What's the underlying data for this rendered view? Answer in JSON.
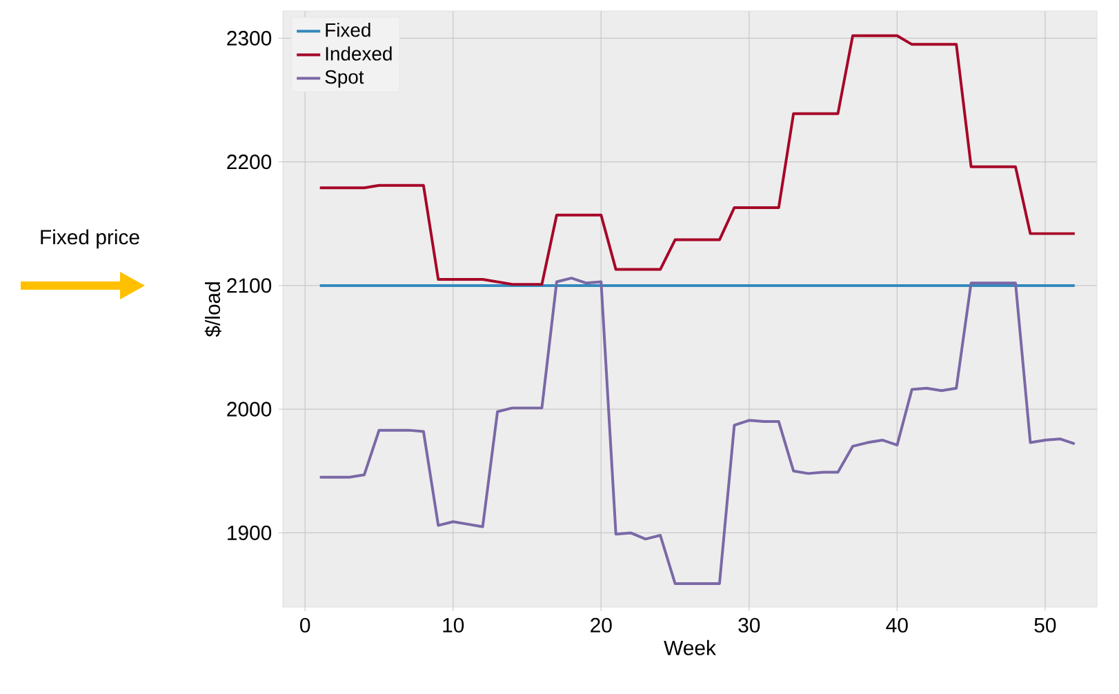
{
  "chart_data": {
    "type": "line",
    "xlabel": "Week",
    "ylabel": "$/load",
    "x": [
      1,
      2,
      3,
      4,
      5,
      6,
      7,
      8,
      9,
      10,
      11,
      12,
      13,
      14,
      15,
      16,
      17,
      18,
      19,
      20,
      21,
      22,
      23,
      24,
      25,
      26,
      27,
      28,
      29,
      30,
      31,
      32,
      33,
      34,
      35,
      36,
      37,
      38,
      39,
      40,
      41,
      42,
      43,
      44,
      45,
      46,
      47,
      48,
      49,
      50,
      51,
      52
    ],
    "series": [
      {
        "name": "Fixed",
        "color": "#348abd",
        "values": [
          2100,
          2100,
          2100,
          2100,
          2100,
          2100,
          2100,
          2100,
          2100,
          2100,
          2100,
          2100,
          2100,
          2100,
          2100,
          2100,
          2100,
          2100,
          2100,
          2100,
          2100,
          2100,
          2100,
          2100,
          2100,
          2100,
          2100,
          2100,
          2100,
          2100,
          2100,
          2100,
          2100,
          2100,
          2100,
          2100,
          2100,
          2100,
          2100,
          2100,
          2100,
          2100,
          2100,
          2100,
          2100,
          2100,
          2100,
          2100,
          2100,
          2100,
          2100,
          2100
        ]
      },
      {
        "name": "Indexed",
        "color": "#a60628",
        "values": [
          2179,
          2179,
          2179,
          2179,
          2181,
          2181,
          2181,
          2181,
          2105,
          2105,
          2105,
          2105,
          2103,
          2101,
          2101,
          2101,
          2157,
          2157,
          2157,
          2157,
          2113,
          2113,
          2113,
          2113,
          2137,
          2137,
          2137,
          2137,
          2163,
          2163,
          2163,
          2163,
          2239,
          2239,
          2239,
          2239,
          2302,
          2302,
          2302,
          2302,
          2295,
          2295,
          2295,
          2295,
          2196,
          2196,
          2196,
          2196,
          2142,
          2142,
          2142,
          2142
        ]
      },
      {
        "name": "Spot",
        "color": "#7a68a6",
        "values": [
          1945,
          1945,
          1945,
          1947,
          1983,
          1983,
          1983,
          1982,
          1906,
          1909,
          1907,
          1905,
          1998,
          2001,
          2001,
          2001,
          2103,
          2106,
          2102,
          2103,
          1899,
          1900,
          1895,
          1898,
          1859,
          1859,
          1859,
          1859,
          1987,
          1991,
          1990,
          1990,
          1950,
          1948,
          1949,
          1949,
          1970,
          1973,
          1975,
          1971,
          2016,
          2017,
          2015,
          2017,
          2102,
          2102,
          2102,
          2102,
          1973,
          1975,
          1976,
          1972
        ]
      }
    ],
    "xlim": [
      -1.5,
      53.5
    ],
    "ylim": [
      1840,
      2322
    ],
    "xticks": [
      0,
      10,
      20,
      30,
      40,
      50
    ],
    "yticks": [
      1900,
      2000,
      2100,
      2200,
      2300
    ],
    "grid": true,
    "legend": "top left",
    "line_style": "solid",
    "annotations": [
      "Fixed price"
    ]
  }
}
